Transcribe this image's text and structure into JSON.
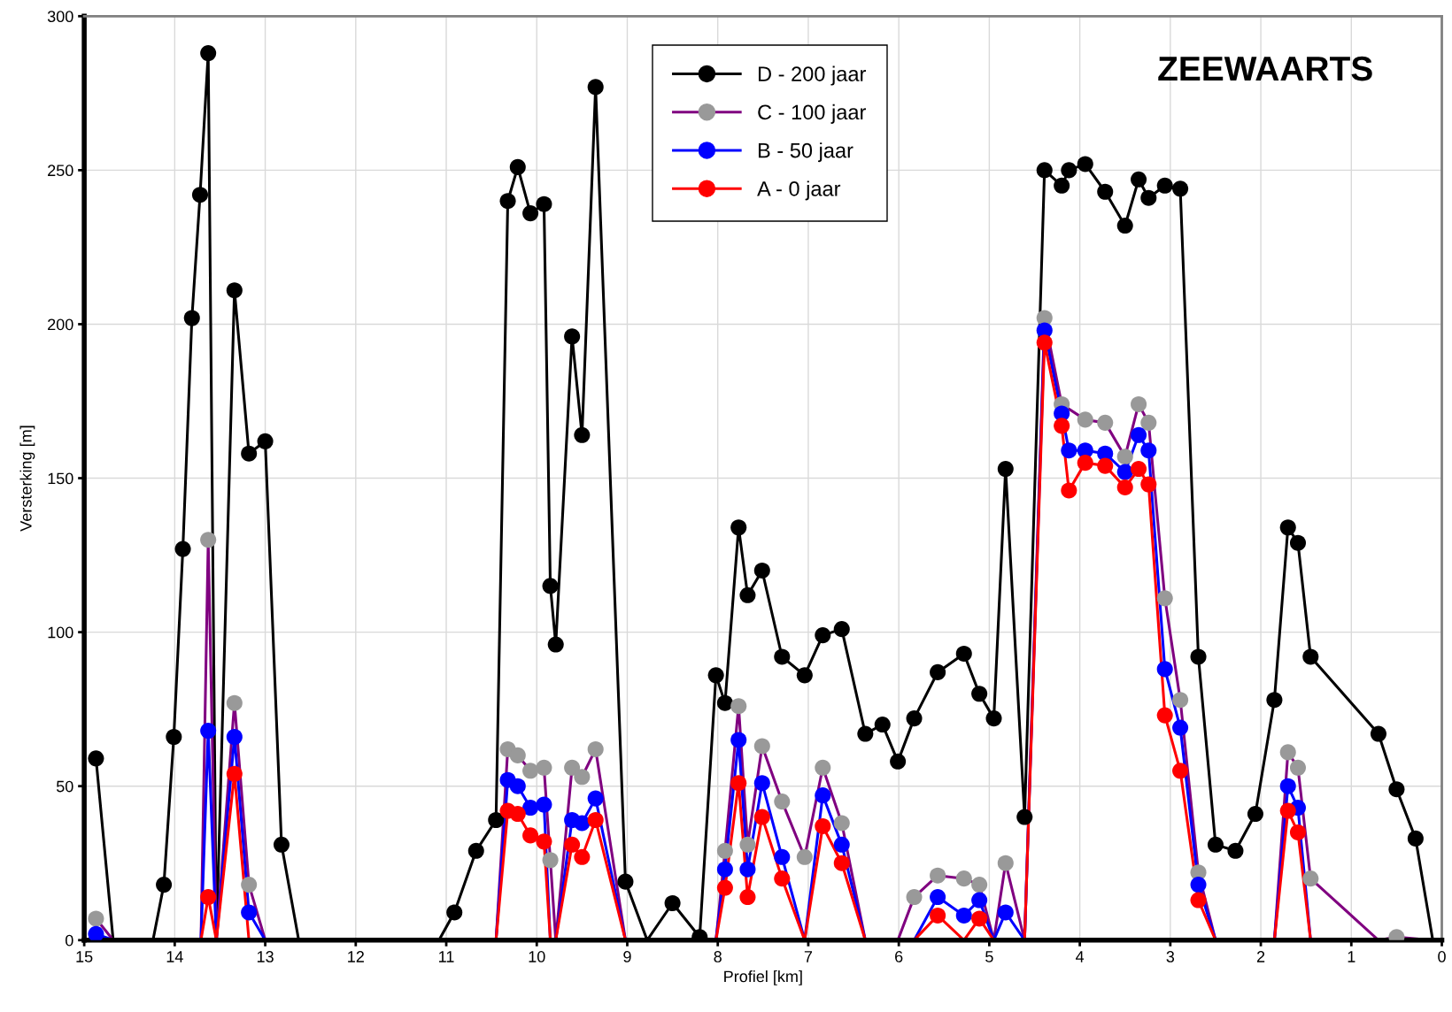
{
  "chart_data": {
    "type": "line",
    "title": "ZEEWAARTS",
    "xlabel": "Profiel [km]",
    "ylabel": "Versterking [m]",
    "xlim": [
      15,
      0
    ],
    "xticks": [
      15,
      14,
      13,
      12,
      11,
      10,
      9,
      8,
      7,
      6,
      5,
      4,
      3,
      2,
      1,
      0
    ],
    "ylim": [
      0,
      300
    ],
    "yticks": [
      0,
      50,
      100,
      150,
      200,
      250,
      300
    ],
    "grid": true,
    "legend": "top",
    "marker": "circle",
    "line_style": "solid",
    "series": [
      {
        "name": "D - 200 jaar",
        "color": "#000000",
        "x": [
          14.87,
          14.68,
          14.24,
          14.12,
          14.01,
          13.91,
          13.81,
          13.72,
          13.63,
          13.54,
          13.34,
          13.18,
          13.0,
          12.82,
          12.63,
          11.08,
          10.91,
          10.67,
          10.45,
          10.32,
          10.21,
          10.07,
          9.92,
          9.85,
          9.79,
          9.61,
          9.5,
          9.35,
          9.02,
          8.78,
          8.5,
          8.2,
          8.02,
          7.92,
          7.77,
          7.67,
          7.51,
          7.29,
          7.04,
          6.84,
          6.63,
          6.37,
          6.18,
          6.01,
          5.83,
          5.57,
          5.28,
          5.11,
          4.95,
          4.82,
          4.61,
          4.39,
          4.2,
          4.12,
          3.94,
          3.72,
          3.5,
          3.35,
          3.24,
          3.06,
          2.89,
          2.69,
          2.5,
          2.28,
          2.06,
          1.85,
          1.7,
          1.59,
          1.45,
          0.7,
          0.5,
          0.29,
          0.1
        ],
        "values": [
          59,
          0,
          0,
          18,
          66,
          127,
          202,
          242,
          288,
          0,
          211,
          158,
          162,
          31,
          0,
          0,
          9,
          29,
          39,
          240,
          251,
          236,
          239,
          115,
          96,
          196,
          164,
          277,
          19,
          0,
          12,
          1,
          86,
          77,
          134,
          112,
          120,
          92,
          86,
          99,
          101,
          67,
          70,
          58,
          72,
          87,
          93,
          80,
          72,
          153,
          40,
          250,
          245,
          250,
          252,
          243,
          232,
          247,
          241,
          245,
          244,
          92,
          31,
          29,
          41,
          78,
          134,
          129,
          92,
          67,
          49,
          33,
          0
        ]
      },
      {
        "name": "C - 100 jaar",
        "color": "#800080",
        "colors": [
          "#999999",
          "#999999",
          "#999999",
          "#999999",
          "#999999",
          "#999999",
          "#999999",
          "#999999",
          "#999999",
          "#999999",
          "#999999",
          "#999999",
          "#999999",
          "#999999",
          "#999999",
          "#999999",
          "#999999",
          "#999999",
          "#999999",
          "#999999",
          "#999999",
          "#999999",
          "#999999",
          "#999999",
          "#999999",
          "#999999",
          "#999999",
          "#999999",
          "#999999",
          "#999999",
          "#999999",
          "#999999",
          "#999999",
          "#999999",
          "#999999",
          "#999999",
          "#999999",
          "#999999",
          "#999999",
          "#999999",
          "#999999",
          "#999999",
          "#999999",
          "#999999",
          "#999999",
          "#999999",
          "#999999",
          "#999999",
          "#999999",
          "#999999",
          "#999999",
          "#999999",
          "#999999",
          "#999999",
          "#999999"
        ],
        "x": [
          14.87,
          14.68,
          13.71,
          13.63,
          13.54,
          13.34,
          13.18,
          13.0,
          10.45,
          10.32,
          10.21,
          10.07,
          9.92,
          9.85,
          9.79,
          9.61,
          9.5,
          9.35,
          9.02,
          8.02,
          7.92,
          7.77,
          7.67,
          7.51,
          7.29,
          7.04,
          6.84,
          6.63,
          6.37,
          6.01,
          5.83,
          5.57,
          5.28,
          5.11,
          4.95,
          4.82,
          4.61,
          4.39,
          4.2,
          3.94,
          3.72,
          3.5,
          3.35,
          3.24,
          3.06,
          2.89,
          2.69,
          2.5,
          1.85,
          1.7,
          1.59,
          1.45,
          0.7,
          0.5,
          0.1
        ],
        "values": [
          7,
          0,
          0,
          130,
          0,
          77,
          18,
          0,
          0,
          62,
          60,
          55,
          56,
          26,
          0,
          56,
          53,
          62,
          0,
          0,
          29,
          76,
          31,
          63,
          45,
          27,
          56,
          38,
          0,
          0,
          14,
          21,
          20,
          18,
          0,
          25,
          0,
          202,
          174,
          169,
          168,
          157,
          174,
          168,
          111,
          78,
          22,
          0,
          0,
          61,
          56,
          20,
          0,
          1,
          0
        ]
      },
      {
        "name": "B - 50 jaar",
        "color": "#0000ff",
        "x": [
          14.87,
          14.68,
          13.71,
          13.63,
          13.54,
          13.34,
          13.18,
          13.0,
          10.45,
          10.32,
          10.21,
          10.07,
          9.92,
          9.85,
          9.79,
          9.61,
          9.5,
          9.35,
          9.02,
          8.02,
          7.92,
          7.77,
          7.67,
          7.51,
          7.29,
          7.04,
          6.84,
          6.63,
          6.37,
          5.83,
          5.57,
          5.28,
          5.11,
          4.95,
          4.82,
          4.61,
          4.39,
          4.2,
          4.12,
          3.94,
          3.72,
          3.5,
          3.35,
          3.24,
          3.06,
          2.89,
          2.69,
          2.5,
          1.85,
          1.7,
          1.59,
          1.45,
          0.1
        ],
        "values": [
          2,
          0,
          0,
          68,
          0,
          66,
          9,
          0,
          0,
          52,
          50,
          43,
          44,
          0,
          0,
          39,
          38,
          46,
          0,
          0,
          23,
          65,
          23,
          51,
          27,
          0,
          47,
          31,
          0,
          0,
          14,
          8,
          13,
          0,
          9,
          0,
          198,
          171,
          159,
          159,
          158,
          152,
          164,
          159,
          88,
          69,
          18,
          0,
          0,
          50,
          43,
          0,
          0
        ]
      },
      {
        "name": "A - 0 jaar",
        "color": "#ff0000",
        "x": [
          13.71,
          13.63,
          13.54,
          13.34,
          13.18,
          10.45,
          10.32,
          10.21,
          10.07,
          9.92,
          9.85,
          9.79,
          9.61,
          9.5,
          9.35,
          9.02,
          8.02,
          7.92,
          7.77,
          7.67,
          7.51,
          7.29,
          7.04,
          6.84,
          6.63,
          6.37,
          5.83,
          5.57,
          5.28,
          5.11,
          4.95,
          4.61,
          4.39,
          4.2,
          4.12,
          3.94,
          3.72,
          3.5,
          3.35,
          3.24,
          3.06,
          2.89,
          2.69,
          2.5,
          1.85,
          1.7,
          1.59,
          1.45,
          0.1
        ],
        "values": [
          0,
          14,
          0,
          54,
          0,
          0,
          42,
          41,
          34,
          32,
          0,
          0,
          31,
          27,
          39,
          0,
          0,
          17,
          51,
          14,
          40,
          20,
          0,
          37,
          25,
          0,
          0,
          8,
          0,
          7,
          0,
          0,
          194,
          167,
          146,
          155,
          154,
          147,
          153,
          148,
          73,
          55,
          13,
          0,
          0,
          42,
          35,
          0,
          0
        ]
      }
    ]
  }
}
